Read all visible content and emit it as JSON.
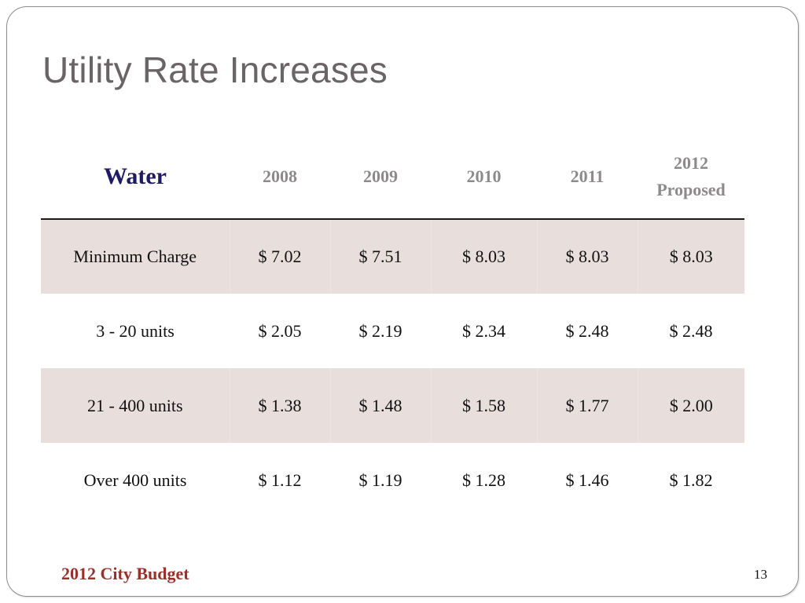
{
  "slide": {
    "title": "Utility Rate Increases",
    "footer": "2012 City Budget",
    "page_number": "13"
  },
  "table": {
    "corner_label": "Water",
    "columns": [
      "2008",
      "2009",
      "2010",
      "2011",
      "2012 Proposed"
    ],
    "rows": [
      {
        "label": "Minimum Charge",
        "values": [
          "$ 7.02",
          "$ 7.51",
          "$ 8.03",
          "$ 8.03",
          "$ 8.03"
        ]
      },
      {
        "label": "3 - 20 units",
        "values": [
          "$ 2.05",
          "$ 2.19",
          "$ 2.34",
          "$ 2.48",
          "$ 2.48"
        ]
      },
      {
        "label": "21 - 400 units",
        "values": [
          "$ 1.38",
          "$ 1.48",
          "$ 1.58",
          "$ 1.77",
          "$ 2.00"
        ]
      },
      {
        "label": "Over 400 units",
        "values": [
          "$ 1.12",
          "$ 1.19",
          "$ 1.28",
          "$ 1.46",
          "$ 1.82"
        ]
      }
    ]
  },
  "colors": {
    "title": "#6b6466",
    "corner_label": "#1f1a66",
    "header_text": "#8c8a8b",
    "band_fill": "#e8dedc",
    "footer": "#99302a"
  }
}
